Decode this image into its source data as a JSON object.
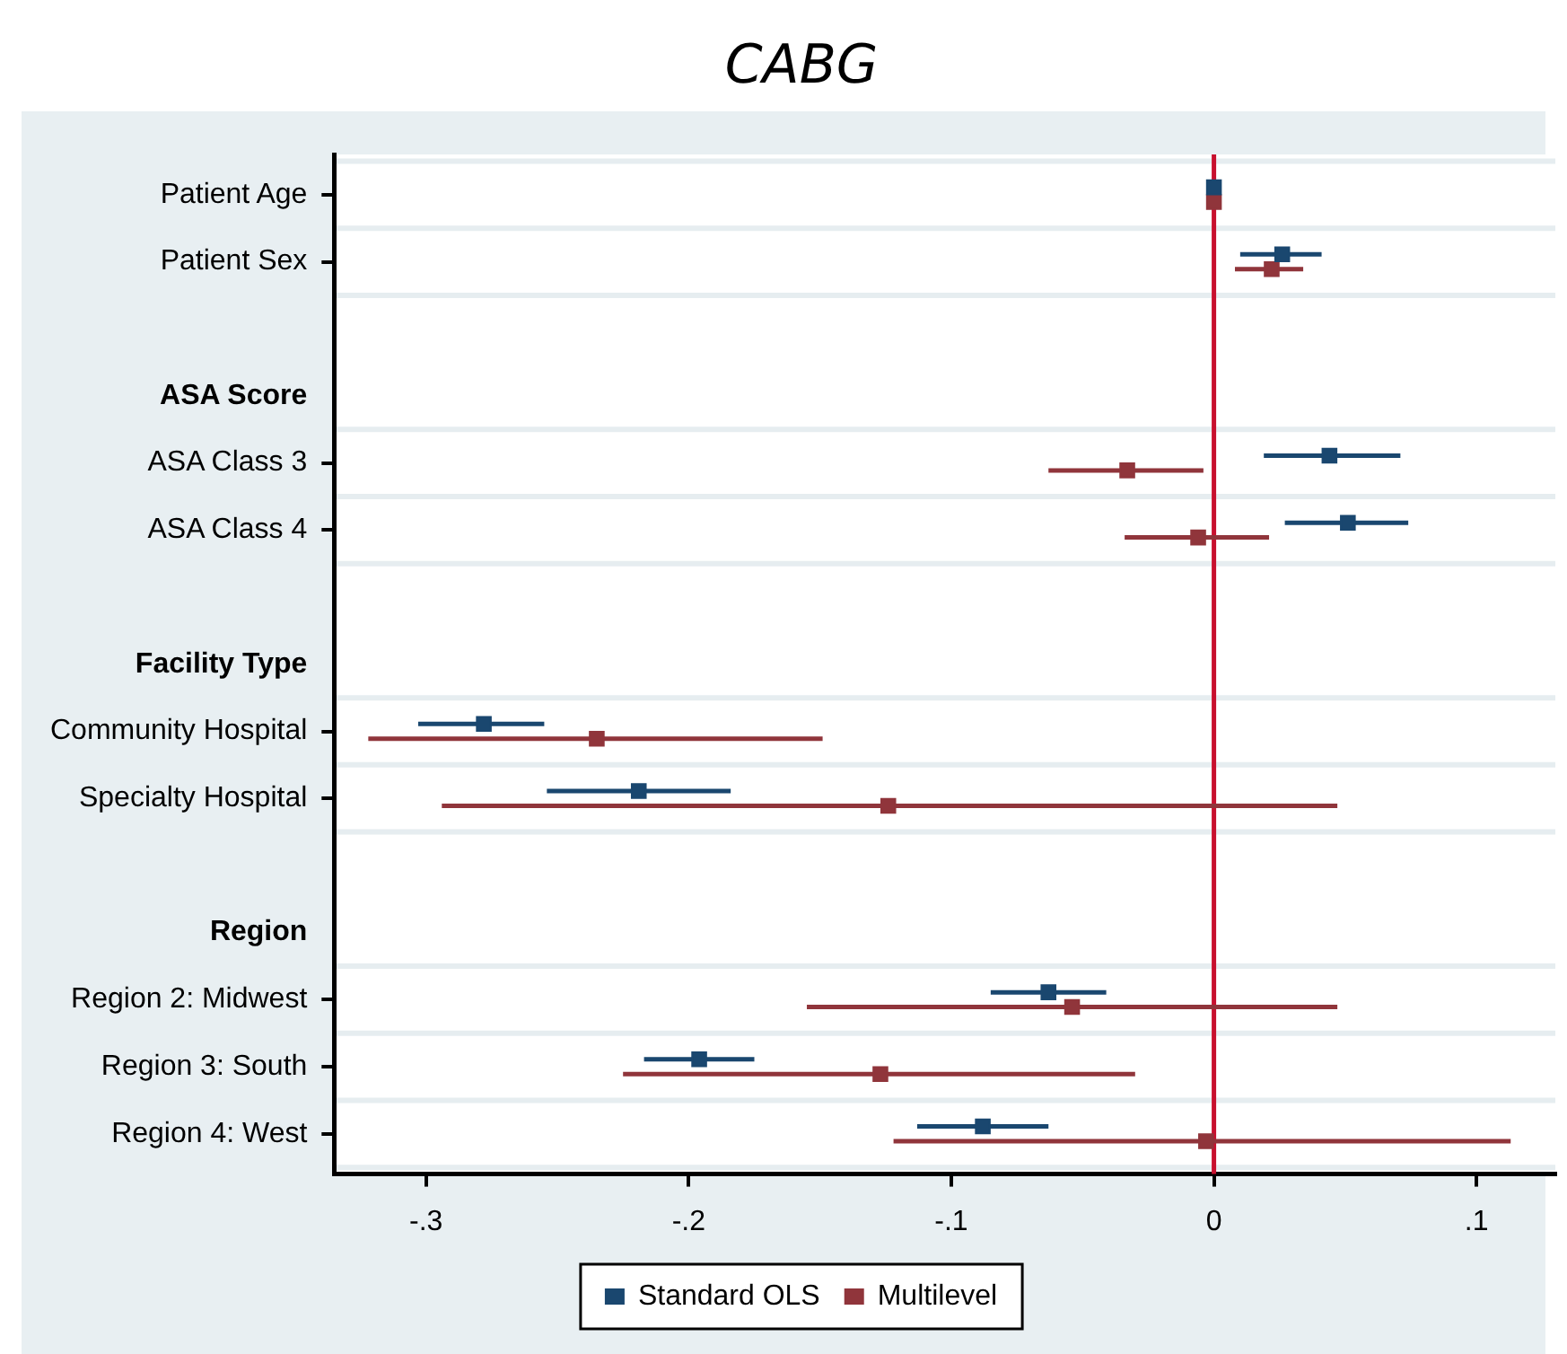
{
  "chart_data": {
    "type": "scatter",
    "orientation": "horizontal",
    "title": "CABG",
    "categories": [
      "Patient Age",
      "Patient Sex",
      null,
      "ASA Score",
      "ASA Class 3",
      "ASA Class 4",
      null,
      "Facility Type",
      "Community Hospital",
      "Specialty Hospital",
      null,
      "Region",
      "Region 2: Midwest",
      "Region 3: South",
      "Region 4: West"
    ],
    "series": [
      {
        "name": "Standard OLS",
        "color": "#1a476f",
        "values": [
          0,
          0.026,
          null,
          null,
          0.044,
          0.051,
          null,
          null,
          -0.278,
          -0.219,
          null,
          null,
          -0.063,
          -0.196,
          -0.088
        ],
        "errors": [
          null,
          [
            0.01,
            0.041
          ],
          null,
          null,
          [
            0.019,
            0.071
          ],
          [
            0.027,
            0.074
          ],
          null,
          null,
          [
            -0.303,
            -0.255
          ],
          [
            -0.254,
            -0.184
          ],
          null,
          null,
          [
            -0.085,
            -0.041
          ],
          [
            -0.217,
            -0.175
          ],
          [
            -0.113,
            -0.063
          ]
        ]
      },
      {
        "name": "Multilevel",
        "color": "#90353b",
        "values": [
          0,
          0.022,
          null,
          null,
          -0.033,
          -0.006,
          null,
          null,
          -0.235,
          -0.124,
          null,
          null,
          -0.054,
          -0.127,
          -0.003
        ],
        "errors": [
          null,
          [
            0.008,
            0.034
          ],
          null,
          null,
          [
            -0.063,
            -0.004
          ],
          [
            -0.034,
            0.021
          ],
          null,
          null,
          [
            -0.322,
            -0.149
          ],
          [
            -0.294,
            0.047
          ],
          null,
          null,
          [
            -0.155,
            0.047
          ],
          [
            -0.225,
            -0.03
          ],
          [
            -0.122,
            0.113
          ]
        ]
      }
    ],
    "xlim": [
      -0.335,
      0.13
    ],
    "xticks": [
      {
        "value": -0.3,
        "label": "-.3"
      },
      {
        "value": -0.2,
        "label": "-.2"
      },
      {
        "value": -0.1,
        "label": "-.1"
      },
      0,
      {
        "value": 0.1,
        "label": ".1"
      }
    ],
    "ref_lines": [
      {
        "axis": "x",
        "value": 0,
        "color": "#c8102e"
      }
    ],
    "grid": "y",
    "legend": "bottom",
    "marker": "square"
  }
}
